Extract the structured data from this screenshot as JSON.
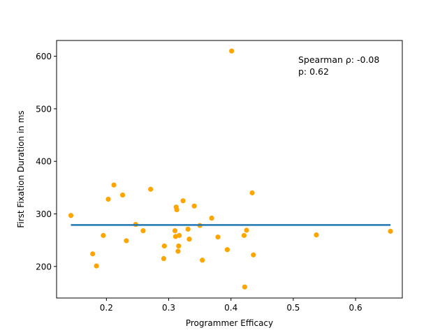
{
  "chart_data": {
    "type": "scatter",
    "xlabel": "Programmer Efficacy",
    "ylabel": "First Fixation Duration in ms",
    "xlim": [
      0.12,
      0.675
    ],
    "ylim": [
      140,
      630
    ],
    "xticks": [
      0.2,
      0.3,
      0.4,
      0.5,
      0.6
    ],
    "yticks": [
      200,
      300,
      400,
      500,
      600
    ],
    "grid": false,
    "point_color": "#ffa500",
    "line_color": "#1f77b4",
    "annotations": [
      "Spearman ρ: -0.08",
      "p: 0.62"
    ],
    "points": [
      [
        0.143,
        297
      ],
      [
        0.178,
        224
      ],
      [
        0.184,
        201
      ],
      [
        0.195,
        259
      ],
      [
        0.203,
        328
      ],
      [
        0.212,
        355
      ],
      [
        0.226,
        336
      ],
      [
        0.232,
        249
      ],
      [
        0.247,
        280
      ],
      [
        0.259,
        268
      ],
      [
        0.271,
        347
      ],
      [
        0.292,
        215
      ],
      [
        0.293,
        239
      ],
      [
        0.31,
        268
      ],
      [
        0.311,
        257
      ],
      [
        0.312,
        313
      ],
      [
        0.313,
        308
      ],
      [
        0.315,
        229
      ],
      [
        0.316,
        239
      ],
      [
        0.317,
        259
      ],
      [
        0.323,
        325
      ],
      [
        0.331,
        271
      ],
      [
        0.333,
        252
      ],
      [
        0.341,
        315
      ],
      [
        0.35,
        278
      ],
      [
        0.354,
        212
      ],
      [
        0.369,
        292
      ],
      [
        0.379,
        256
      ],
      [
        0.394,
        232
      ],
      [
        0.401,
        610
      ],
      [
        0.421,
        259
      ],
      [
        0.422,
        161
      ],
      [
        0.425,
        269
      ],
      [
        0.434,
        340
      ],
      [
        0.436,
        222
      ],
      [
        0.537,
        260
      ],
      [
        0.656,
        267
      ]
    ],
    "fit_line": {
      "x": [
        0.143,
        0.656
      ],
      "y": [
        279,
        279
      ]
    }
  }
}
